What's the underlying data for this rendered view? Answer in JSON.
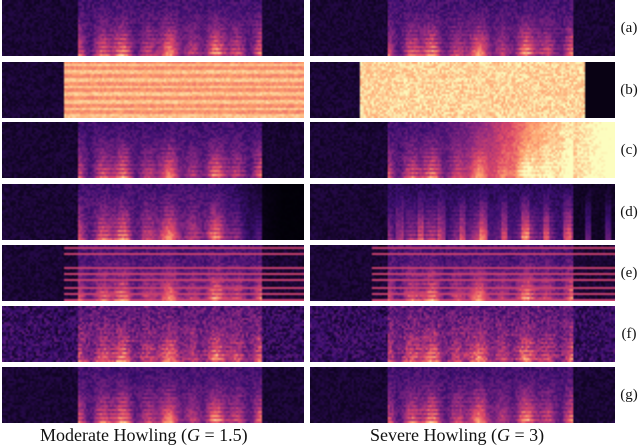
{
  "rows": [
    {
      "label": "(a)",
      "left_type": "clean",
      "right_type": "clean"
    },
    {
      "label": "(b)",
      "left_type": "howl_mod",
      "right_type": "howl_sev"
    },
    {
      "label": "(c)",
      "left_type": "partial",
      "right_type": "ramp"
    },
    {
      "label": "(d)",
      "left_type": "fade",
      "right_type": "comb"
    },
    {
      "label": "(e)",
      "left_type": "stripes",
      "right_type": "stripes"
    },
    {
      "label": "(f)",
      "left_type": "noisy",
      "right_type": "noisy"
    },
    {
      "label": "(g)",
      "left_type": "clean",
      "right_type": "clean"
    }
  ],
  "captions": {
    "left": {
      "prefix": "Moderate Howling (",
      "var": "G",
      "rest": " = 1.5)"
    },
    "right": {
      "prefix": "Severe Howling (",
      "var": "G",
      "rest": " = 3)"
    }
  },
  "colormap": [
    "#000004",
    "#3b0f70",
    "#8c2981",
    "#de4968",
    "#fe9f6d",
    "#fcfdbf"
  ]
}
